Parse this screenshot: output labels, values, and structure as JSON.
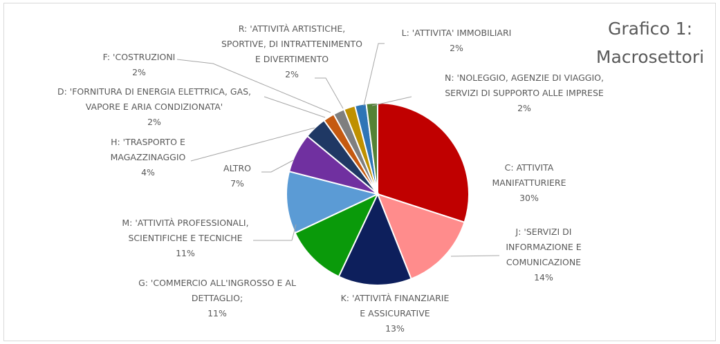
{
  "chart_data": {
    "type": "pie",
    "title_lines": [
      "Grafico 1:",
      "Macrosettori"
    ],
    "slices": [
      {
        "lines": [
          "C: ATTIVITA",
          "MANIFATTURIERE",
          "30%"
        ],
        "value": 30,
        "color": "#c00000"
      },
      {
        "lines": [
          "J: 'SERVIZI DI",
          "INFORMAZIONE E",
          "COMUNICAZIONE",
          "14%"
        ],
        "value": 14,
        "color": "#ff8c8c"
      },
      {
        "lines": [
          "K: 'ATTIVITÀ FINANZIARIE",
          "E ASSICURATIVE",
          "13%"
        ],
        "value": 13,
        "color": "#0d1f5c"
      },
      {
        "lines": [
          "G: 'COMMERCIO ALL'INGROSSO E AL",
          "DETTAGLIO;",
          "11%"
        ],
        "value": 11,
        "color": "#0a9a0a"
      },
      {
        "lines": [
          "M: 'ATTIVITÀ PROFESSIONALI,",
          "SCIENTIFICHE E TECNICHE",
          "11%"
        ],
        "value": 11,
        "color": "#5b9bd5"
      },
      {
        "lines": [
          "ALTRO",
          "7%"
        ],
        "value": 7,
        "color": "#7030a0"
      },
      {
        "lines": [
          "H: 'TRASPORTO E",
          "MAGAZZINAGGIO",
          "4%"
        ],
        "value": 4,
        "color": "#1f3864"
      },
      {
        "lines": [
          "D: 'FORNITURA DI ENERGIA ELETTRICA, GAS,",
          "VAPORE E ARIA CONDIZIONATA'",
          "2%"
        ],
        "value": 2,
        "color": "#c55a11"
      },
      {
        "lines": [
          "F: 'COSTRUZIONI",
          "2%"
        ],
        "value": 2,
        "color": "#7f7f7f"
      },
      {
        "lines": [
          "R: 'ATTIVITÀ ARTISTICHE,",
          "SPORTIVE, DI INTRATTENIMENTO",
          "E DIVERTIMENTO",
          "2%"
        ],
        "value": 2,
        "color": "#bf9000"
      },
      {
        "lines": [
          "L: 'ATTIVITA' IMMOBILIARI",
          "2%"
        ],
        "value": 2,
        "color": "#2e75b6"
      },
      {
        "lines": [
          "N: 'NOLEGGIO, AGENZIE DI VIAGGIO,",
          "SERVIZI DI SUPPORTO ALLE IMPRESE",
          "2%"
        ],
        "value": 2,
        "color": "#548235"
      }
    ]
  }
}
